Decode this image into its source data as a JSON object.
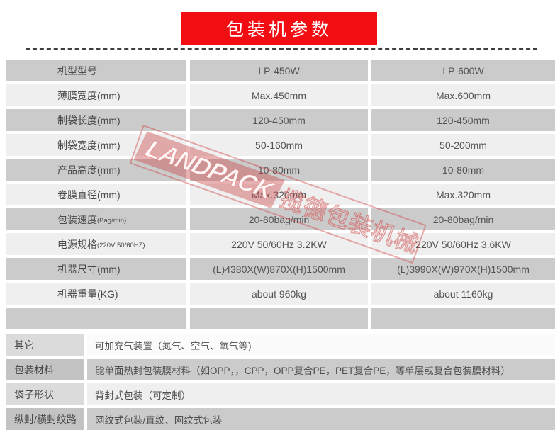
{
  "banner": {
    "title": "包装机参数"
  },
  "watermark": {
    "brand_latin": "LANDPACK",
    "brand_cjk": "揽德包装机械"
  },
  "colors": {
    "banner_red": "#f20d12",
    "row_dark": "#cbcbcb",
    "row_light": "#efefef",
    "extra_label_light": "#dbdbdb",
    "extra_label_dark": "#c3c3c3",
    "watermark_red": "rgba(203,72,72,0.42)"
  },
  "spec_table": {
    "rows": [
      {
        "label": "机型型号",
        "note": "",
        "col1": "LP-450W",
        "col2": "LP-600W"
      },
      {
        "label": "薄膜宽度(mm)",
        "note": "",
        "col1": "Max.450mm",
        "col2": "Max.600mm"
      },
      {
        "label": "制袋长度(mm)",
        "note": "",
        "col1": "120-450mm",
        "col2": "120-450mm"
      },
      {
        "label": "制袋宽度(mm)",
        "note": "",
        "col1": "50-160mm",
        "col2": "50-200mm"
      },
      {
        "label": "产品高度(mm)",
        "note": "",
        "col1": "10-80mm",
        "col2": "10-80mm"
      },
      {
        "label": "卷膜直径(mm)",
        "note": "",
        "col1": "Max.320mm",
        "col2": "Max.320mm"
      },
      {
        "label": "包装速度",
        "note": "(Bag/min)",
        "col1": "20-80bag/min",
        "col2": "20-80bag/min"
      },
      {
        "label": "电源规格",
        "note": "(220V 50/60HZ)",
        "col1": "220V 50/60Hz 3.2KW",
        "col2": "220V 50/60Hz 3.6KW"
      },
      {
        "label": "机器尺寸(mm)",
        "note": "",
        "col1": "(L)4380X(W)870X(H)1500mm",
        "col2": "(L)3990X(W)970X(H)1500mm"
      },
      {
        "label": "机器重量(KG)",
        "note": "",
        "col1": "about 960kg",
        "col2": "about 1160kg"
      },
      {
        "label": "",
        "note": "",
        "col1": "",
        "col2": ""
      }
    ]
  },
  "extra_table": {
    "rows": [
      {
        "label": "其它",
        "value": "可加充气装置（氮气、空气、氧气等)"
      },
      {
        "label": "包装材料",
        "value": "能单面热封包装膜材料（如OPP，，CPP，OPP复合PE，PET复合PE，等单层或复合包装膜材料）"
      },
      {
        "label": "袋子形状",
        "value": "背封式包装（可定制）"
      },
      {
        "label": "纵封/横封纹路",
        "value": "网纹式包装/直纹、网纹式包装"
      }
    ]
  }
}
